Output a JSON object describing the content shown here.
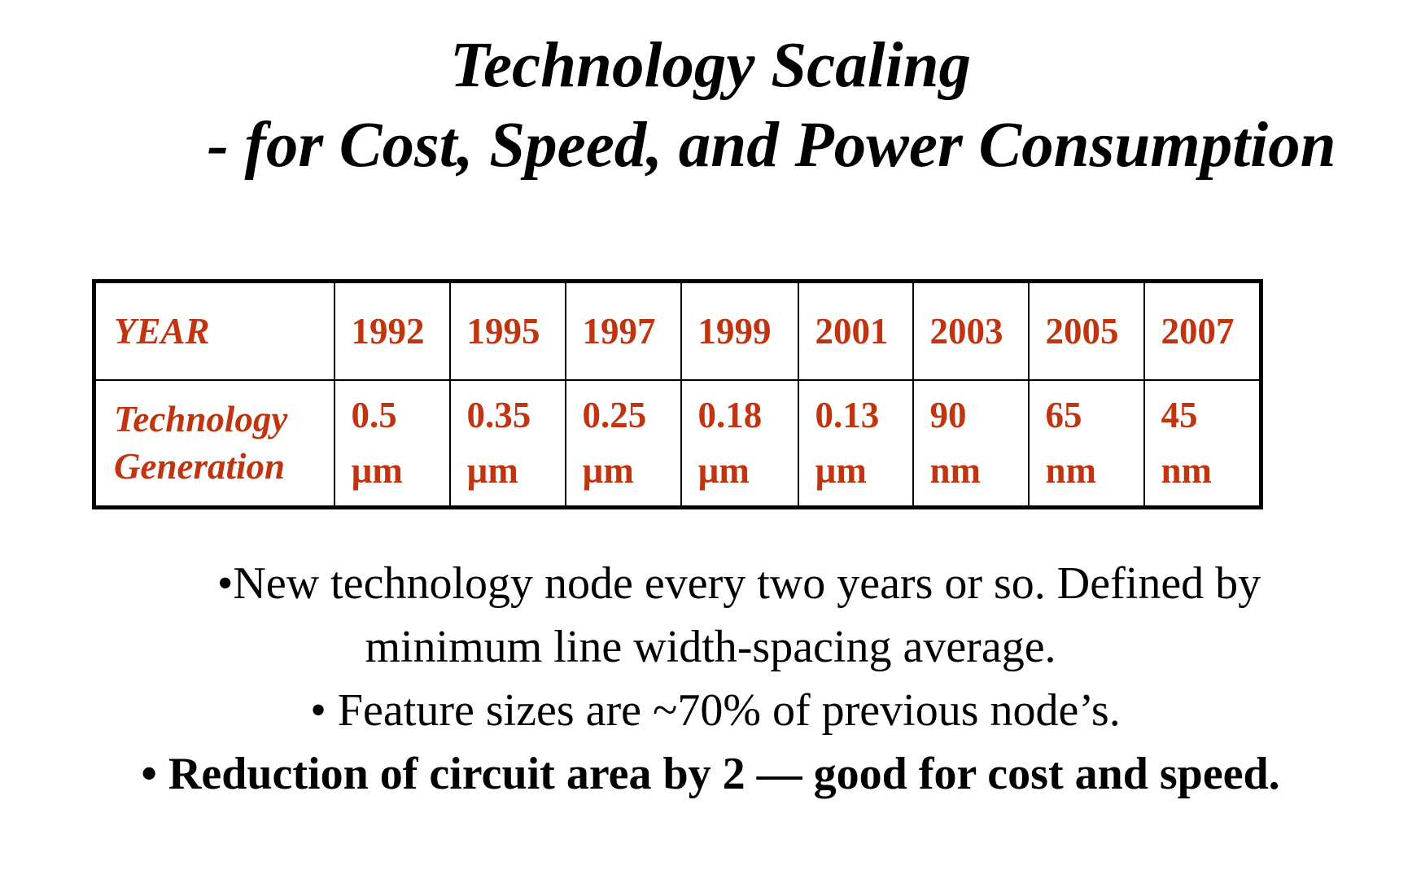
{
  "slide": {
    "title_line1": "Technology Scaling",
    "title_line2": "- for Cost, Speed, and Power Consumption"
  },
  "table": {
    "year_header": "YEAR",
    "generation_header_line1": "Technology",
    "generation_header_line2": "Generation",
    "columns": [
      {
        "year": "1992",
        "value": "0.5",
        "unit": "µm"
      },
      {
        "year": "1995",
        "value": "0.35",
        "unit": "µm"
      },
      {
        "year": "1997",
        "value": "0.25",
        "unit": "µm"
      },
      {
        "year": "1999",
        "value": "0.18",
        "unit": "µm"
      },
      {
        "year": "2001",
        "value": "0.13",
        "unit": "µm"
      },
      {
        "year": "2003",
        "value": "90",
        "unit": "nm"
      },
      {
        "year": "2005",
        "value": "65",
        "unit": "nm"
      },
      {
        "year": "2007",
        "value": "45",
        "unit": "nm"
      }
    ],
    "text_color": "#c0350f"
  },
  "bullets": {
    "b1_line1": "•New technology node every two years or so. Defined by",
    "b1_line2": "minimum line width-spacing average.",
    "b2": "• Feature sizes are ~70% of  previous node’s.",
    "b3": "• Reduction of circuit area by 2 — good for cost and speed."
  }
}
